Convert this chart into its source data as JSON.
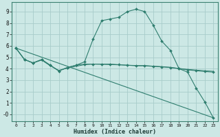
{
  "xlabel": "Humidex (Indice chaleur)",
  "line_color": "#2e7d6e",
  "bg_color": "#cce8e5",
  "grid_color": "#a8ccca",
  "xlim": [
    -0.5,
    23.5
  ],
  "ylim": [
    -0.6,
    9.8
  ],
  "xticks": [
    0,
    1,
    2,
    3,
    4,
    5,
    6,
    7,
    8,
    9,
    10,
    11,
    12,
    13,
    14,
    15,
    16,
    17,
    18,
    19,
    20,
    21,
    22,
    23
  ],
  "yticks": [
    0,
    1,
    2,
    3,
    4,
    5,
    6,
    7,
    8,
    9
  ],
  "line1_x": [
    0,
    1,
    2,
    3,
    4,
    5,
    6,
    7,
    8,
    9,
    10,
    11,
    12,
    13,
    14,
    15,
    16,
    17,
    18,
    19,
    20,
    21,
    22,
    23
  ],
  "line1_y": [
    5.8,
    4.8,
    4.5,
    4.8,
    4.3,
    3.8,
    4.1,
    4.3,
    4.6,
    6.6,
    8.2,
    8.35,
    8.5,
    9.0,
    9.2,
    9.0,
    7.8,
    6.4,
    5.6,
    4.0,
    3.7,
    2.3,
    1.1,
    -0.3
  ],
  "line2_x": [
    0,
    1,
    2,
    3,
    4,
    5,
    6,
    7,
    8,
    9,
    10,
    11,
    12,
    13,
    14,
    15,
    16,
    17,
    18,
    19,
    20,
    21,
    22,
    23
  ],
  "line2_y": [
    5.8,
    4.8,
    4.5,
    4.8,
    4.3,
    3.8,
    4.1,
    4.3,
    4.4,
    4.4,
    4.4,
    4.4,
    4.35,
    4.3,
    4.25,
    4.25,
    4.2,
    4.15,
    4.1,
    4.0,
    3.9,
    3.82,
    3.75,
    3.7
  ],
  "line3_x": [
    0,
    1,
    2,
    3,
    4,
    5,
    6,
    7,
    8,
    9,
    10,
    11,
    12,
    13,
    14,
    15,
    16,
    17,
    18,
    19,
    20,
    21,
    22,
    23
  ],
  "line3_y": [
    5.8,
    4.8,
    4.5,
    4.75,
    4.25,
    3.85,
    4.05,
    4.2,
    4.35,
    4.4,
    4.38,
    4.36,
    4.33,
    4.3,
    4.28,
    4.27,
    4.22,
    4.18,
    4.12,
    4.02,
    3.94,
    3.88,
    3.82,
    3.77
  ],
  "line4_x": [
    0,
    23
  ],
  "line4_y": [
    5.8,
    -0.3
  ]
}
